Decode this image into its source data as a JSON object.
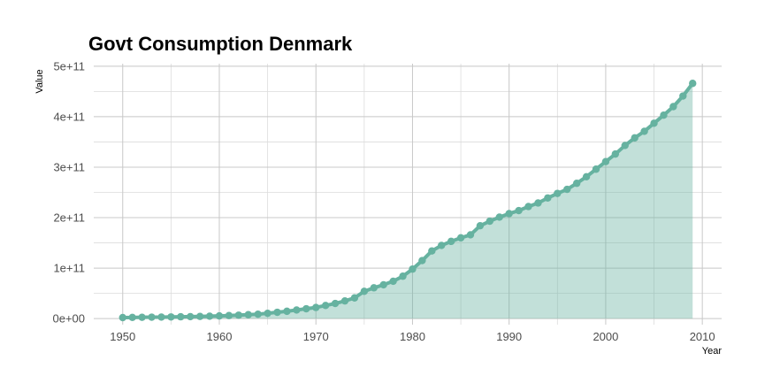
{
  "chart_data": {
    "type": "area",
    "title": "Govt Consumption Denmark",
    "xlabel": "Year",
    "ylabel": "Value",
    "xlim": [
      1947,
      2012
    ],
    "ylim": [
      -12000000000,
      505000000000
    ],
    "x_ticks": [
      1950,
      1960,
      1970,
      1980,
      1990,
      2000,
      2010
    ],
    "x_tick_labels": [
      "1950",
      "1960",
      "1970",
      "1980",
      "1990",
      "2000",
      "2010"
    ],
    "y_ticks": [
      0,
      100000000000,
      200000000000,
      300000000000,
      400000000000,
      500000000000
    ],
    "y_tick_labels": [
      "0e+00",
      "1e+11",
      "2e+11",
      "3e+11",
      "4e+11",
      "5e+11"
    ],
    "grid": true,
    "legend": "none",
    "colors": {
      "line": "#66b2a0",
      "fill": "#66b2a0",
      "fill_opacity": 0.4
    },
    "x": [
      1950,
      1951,
      1952,
      1953,
      1954,
      1955,
      1956,
      1957,
      1958,
      1959,
      1960,
      1961,
      1962,
      1963,
      1964,
      1965,
      1966,
      1967,
      1968,
      1969,
      1970,
      1971,
      1972,
      1973,
      1974,
      1975,
      1976,
      1977,
      1978,
      1979,
      1980,
      1981,
      1982,
      1983,
      1984,
      1985,
      1986,
      1987,
      1988,
      1989,
      1990,
      1991,
      1992,
      1993,
      1994,
      1995,
      1996,
      1997,
      1998,
      1999,
      2000,
      2001,
      2002,
      2003,
      2004,
      2005,
      2006,
      2007,
      2008,
      2009
    ],
    "values": [
      2000000000,
      2300000000,
      2600000000,
      2800000000,
      3000000000,
      3300000000,
      3600000000,
      3900000000,
      4300000000,
      4800000000,
      5300000000,
      6000000000,
      6800000000,
      7700000000,
      8700000000,
      10500000000,
      12500000000,
      14500000000,
      17000000000,
      19500000000,
      22000000000,
      26000000000,
      30000000000,
      35000000000,
      41000000000,
      54000000000,
      61000000000,
      67000000000,
      74000000000,
      84000000000,
      98000000000,
      115000000000,
      134000000000,
      145000000000,
      153000000000,
      160000000000,
      166000000000,
      184000000000,
      193000000000,
      201000000000,
      208000000000,
      214000000000,
      222000000000,
      229000000000,
      239000000000,
      248000000000,
      256000000000,
      268000000000,
      281000000000,
      296000000000,
      311000000000,
      326000000000,
      343000000000,
      358000000000,
      371000000000,
      387000000000,
      403000000000,
      420000000000,
      441000000000,
      466000000000
    ]
  }
}
